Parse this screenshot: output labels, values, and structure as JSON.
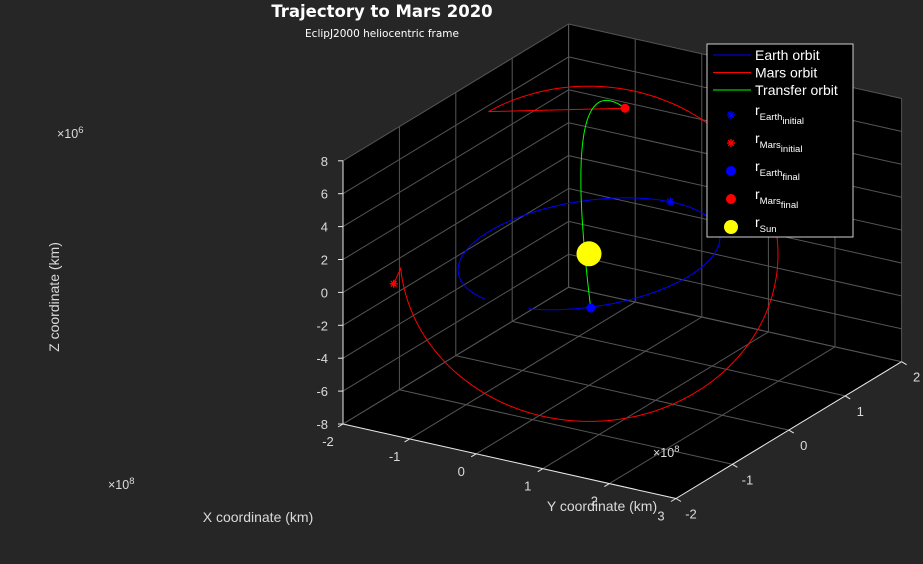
{
  "chart_data": {
    "type": "line",
    "title": "Trajectory to Mars 2020",
    "subtitle": "EclipJ2000 heliocentric frame",
    "xlabel": "X coordinate (km)",
    "ylabel": "Y coordinate (km)",
    "zlabel": "Z coordinate (km)",
    "xlim": [
      -2,
      3
    ],
    "ylim": [
      -2,
      2
    ],
    "zlim": [
      -8,
      8
    ],
    "x_multiplier": "×10",
    "x_multiplier_exp": "8",
    "y_multiplier": "×10",
    "y_multiplier_exp": "8",
    "z_multiplier": "×10",
    "z_multiplier_exp": "6",
    "xticks": [
      "-2",
      "-1",
      "0",
      "1",
      "2",
      "3"
    ],
    "yticks": [
      "-2",
      "-1",
      "0",
      "1",
      "2"
    ],
    "zticks": [
      "-8",
      "-6",
      "-4",
      "-2",
      "0",
      "2",
      "4",
      "6",
      "8"
    ],
    "grid": true,
    "legend_position": "top-right",
    "colors": {
      "background": "#262626",
      "axes": "#000000",
      "grid": "#555555",
      "earth": "#0000ff",
      "mars": "#ff0000",
      "transfer": "#00ff00",
      "sun": "#ffff00"
    },
    "series": [
      {
        "name": "Earth orbit",
        "kind": "line",
        "color": "#0000ff",
        "shape": "ellipse",
        "semi_major_x": 1.5,
        "semi_minor_y": 1.5,
        "center": [
          0,
          0,
          0
        ],
        "z": 0
      },
      {
        "name": "Mars orbit",
        "kind": "line",
        "color": "#ff0000",
        "shape": "arc",
        "radius": 2.28,
        "z_amplitude": 6.3
      },
      {
        "name": "Transfer orbit",
        "kind": "line",
        "color": "#00ff00",
        "shape": "arc"
      }
    ],
    "markers": [
      {
        "name": "r",
        "sub": "Earth",
        "subsub": "initial",
        "symbol": "asterisk",
        "color": "#0000ff",
        "xyz": [
          -0.05,
          1.5,
          0
        ]
      },
      {
        "name": "r",
        "sub": "Mars",
        "subsub": "initial",
        "symbol": "asterisk",
        "color": "#ff0000",
        "xyz": [
          -1.45,
          -1.75,
          0.5
        ]
      },
      {
        "name": "r",
        "sub": "Earth",
        "subsub": "final",
        "symbol": "dot",
        "color": "#0000ff",
        "xyz": [
          1.0,
          -1.15,
          0
        ]
      },
      {
        "name": "r",
        "sub": "Mars",
        "subsub": "final",
        "symbol": "dot",
        "color": "#ff0000",
        "xyz": [
          -0.9,
          1.7,
          4.5
        ]
      },
      {
        "name": "r",
        "sub": "Sun",
        "subsub": "",
        "symbol": "big-dot",
        "color": "#ffff00",
        "xyz": [
          0,
          0,
          0
        ]
      }
    ]
  }
}
